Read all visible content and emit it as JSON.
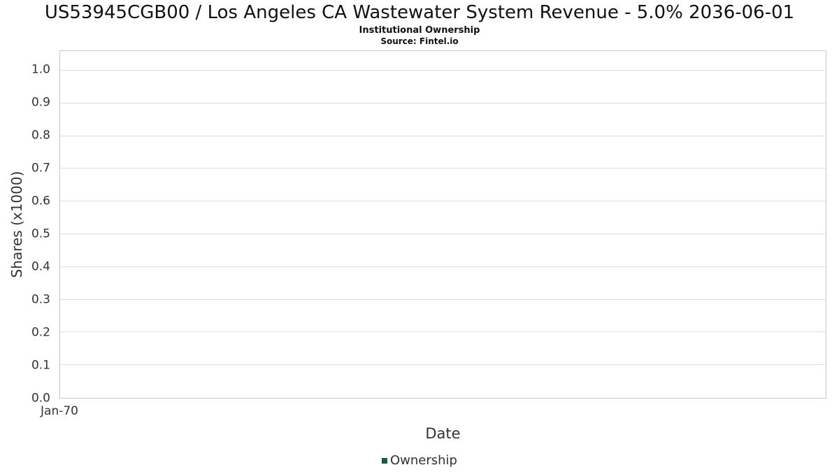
{
  "chart_data": {
    "type": "line",
    "title": "US53945CGB00 / Los Angeles CA Wastewater System Revenue - 5.0% 2036-06-01",
    "subtitle": "Institutional Ownership",
    "source": "Source: Fintel.io",
    "xlabel": "Date",
    "ylabel": "Shares (x1000)",
    "xticks": [
      "Jan-70"
    ],
    "yticks": [
      "0.0",
      "0.1",
      "0.2",
      "0.3",
      "0.4",
      "0.5",
      "0.6",
      "0.7",
      "0.8",
      "0.9",
      "1.0"
    ],
    "ylim": [
      0,
      1.06
    ],
    "grid": "horizontal",
    "legend_position": "bottom-center",
    "series": [
      {
        "name": "Ownership",
        "color": "#185c37",
        "x": [],
        "values": []
      }
    ]
  },
  "colors": {
    "grid": "#dedede",
    "plot_border": "#c9c9c9",
    "text": "#333333",
    "legend_marker": "#185c37"
  }
}
